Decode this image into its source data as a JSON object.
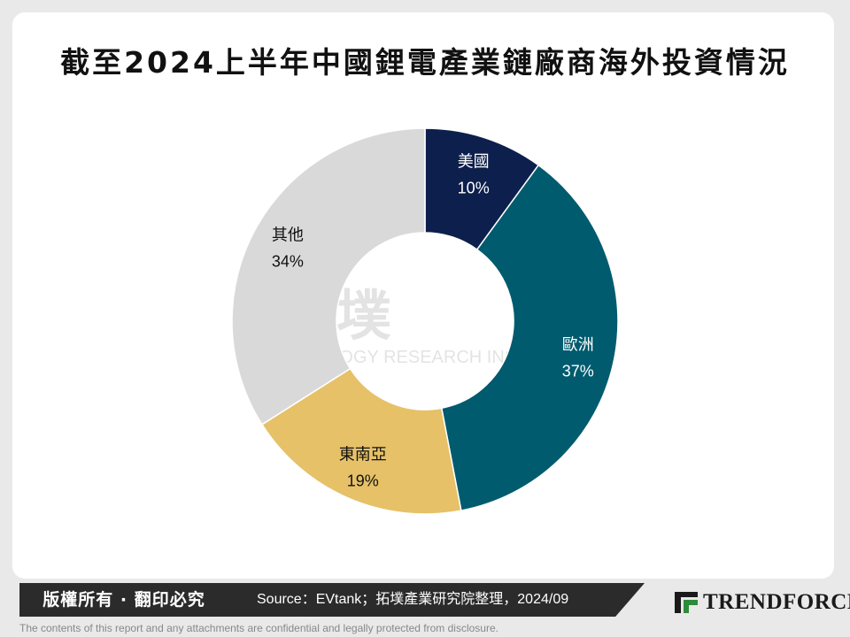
{
  "title": "截至2024上半年中國鋰電產業鏈廠商海外投資情況",
  "chart_data": {
    "type": "pie",
    "slices": [
      {
        "label": "美國",
        "value": 10,
        "value_label": "10%",
        "color": "#0d1f4c"
      },
      {
        "label": "歐洲",
        "value": 37,
        "value_label": "37%",
        "color": "#005b6e"
      },
      {
        "label": "東南亞",
        "value": 19,
        "value_label": "19%",
        "color": "#e6c168"
      },
      {
        "label": "其他",
        "value": 34,
        "value_label": "34%",
        "color": "#d9d9d9"
      }
    ]
  },
  "watermark": {
    "brand": "拓墣",
    "line2": "TOPOLOGY RESEARCH INSTITUTE"
  },
  "footer": {
    "copyright": "版權所有 · 翻印必究",
    "source": "Source：EVtank；拓墣產業研究院整理，2024/09",
    "logo_text": "TRENDFORCE",
    "disclaimer": "The contents of this report and any attachments are confidential and legally protected from disclosure."
  }
}
